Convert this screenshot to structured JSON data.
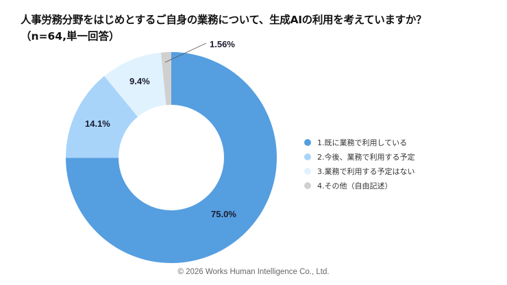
{
  "header": {
    "title": "人事労務分野をはじめとするご自身の業務について、生成AIの利用を考えていますか？",
    "subtitle": "（n=64,単一回答）"
  },
  "legend": {
    "items": [
      {
        "label": "1.既に業務で利用している",
        "color": "#559ee0"
      },
      {
        "label": "2.今後、業務で利用する予定",
        "color": "#a8d4fa"
      },
      {
        "label": "3.業務で利用する予定はない",
        "color": "#e0f2fd"
      },
      {
        "label": "4.その他（自由記述）",
        "color": "#d0d0d0"
      }
    ]
  },
  "labels": {
    "s1": "75.0%",
    "s2": "14.1%",
    "s3": "9.4%",
    "s4": "1.56%"
  },
  "footer": {
    "copyright": "© 2026 Works Human Intelligence Co., Ltd."
  },
  "chart_data": {
    "type": "pie",
    "subtype": "donut",
    "title": "人事労務分野をはじめとするご自身の業務について、生成AIの利用を考えていますか？（n=64,単一回答）",
    "categories": [
      "1.既に業務で利用している",
      "2.今後、業務で利用する予定",
      "3.業務で利用する予定はない",
      "4.その他（自由記述）"
    ],
    "values": [
      75.0,
      14.1,
      9.4,
      1.56
    ],
    "colors": [
      "#559ee0",
      "#a8d4fa",
      "#e0f2fd",
      "#d0d0d0"
    ],
    "data_labels": [
      "75.0%",
      "14.1%",
      "9.4%",
      "1.56%"
    ],
    "n": 64,
    "start_angle": "12 o'clock",
    "direction": "clockwise",
    "legend_position": "right"
  }
}
